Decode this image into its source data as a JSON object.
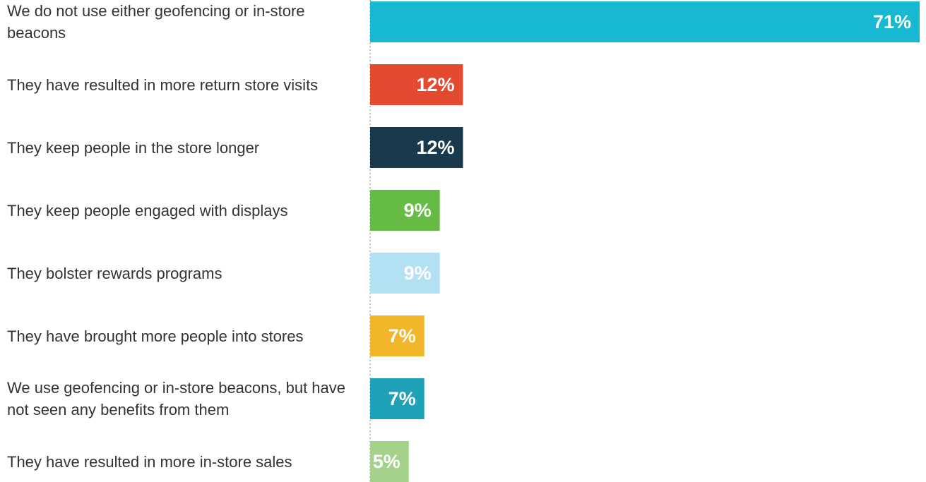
{
  "chart_data": {
    "type": "bar",
    "orientation": "horizontal",
    "categories": [
      "We do not use either geofencing or in-store beacons",
      "They have resulted in more return store visits",
      "They keep people in the store longer",
      "They keep people engaged with displays",
      "They bolster rewards programs",
      "They have brought more people into stores",
      "We use geofencing or in-store beacons, but have not seen any benefits from them",
      "They have resulted in more in-store sales"
    ],
    "values": [
      71,
      12,
      12,
      9,
      9,
      7,
      7,
      5
    ],
    "value_labels": [
      "71%",
      "12%",
      "12%",
      "9%",
      "9%",
      "7%",
      "7%",
      "5%"
    ],
    "colors": [
      "#17b8d2",
      "#e34b31",
      "#193a4c",
      "#66bb44",
      "#b3e1f4",
      "#f2b62b",
      "#1fa1b8",
      "#a5d28b"
    ],
    "xlim": [
      0,
      71
    ]
  }
}
